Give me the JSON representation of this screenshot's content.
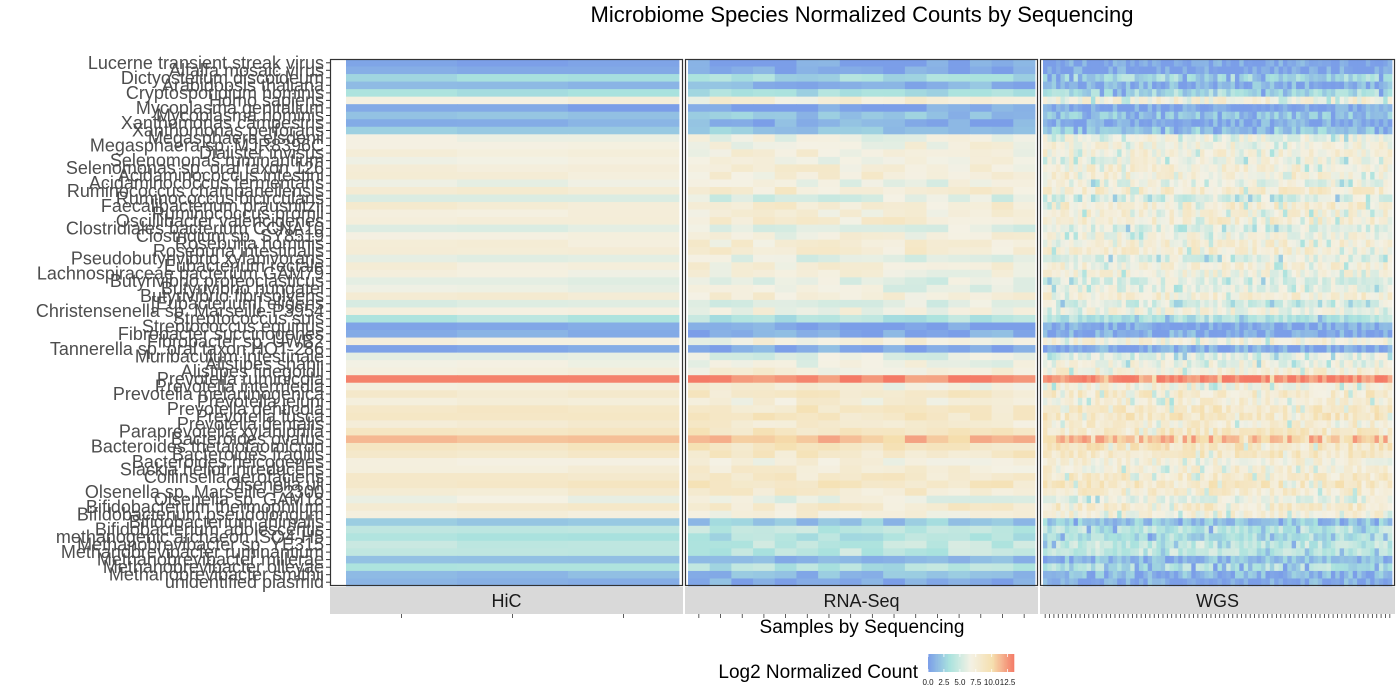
{
  "chart_data": {
    "type": "heatmap",
    "title": "Microbiome Species Normalized Counts by Sequencing",
    "xlabel": "Samples by Sequencing",
    "ylabel": "",
    "legend": {
      "title": "Log2 Normalized Count",
      "ticks": [
        "0.0",
        "2.5",
        "5.0",
        "7.5",
        "10.0",
        "12.5"
      ],
      "colorscale": [
        "#7b9ee8",
        "#a9e2de",
        "#f4f1e4",
        "#f5dfae",
        "#f47a66"
      ],
      "range": [
        0,
        13.5
      ],
      "placement": "bottom"
    },
    "panels": [
      {
        "name": "HiC",
        "samples": 3
      },
      {
        "name": "RNA-Seq",
        "samples": 16
      },
      {
        "name": "WGS",
        "samples": 80
      }
    ],
    "species": [
      "Lucerne transient streak virus",
      "Alfalfa mosaic virus",
      "Dictyostelium discoideum",
      "Arabidopsis thaliana",
      "Cryptosporidium hominis",
      "Homo sapiens",
      "Mycoplasma genitalium",
      "Mycoplasma hominis",
      "Xanthomonas campestris",
      "Xanthomonas perforans",
      "Megasphaera elsdenii",
      "Megasphaera sp. MJR8396C",
      "Dialister invisus",
      "Selenomonas ruminantium",
      "Selenomonas sp. oral taxon 126",
      "Acidaminococcus intestini",
      "Acidaminococcus fermentans",
      "Ruminococcus champanellensis",
      "Ruminococcus bicirculans",
      "Faecalibacterium prausnitzii",
      "Ruminococcus bromii",
      "Oscillibacter valericigenes",
      "Clostridiales bacterium CCNA10",
      "Clostridium sp. SY8519",
      "Roseburia hominis",
      "Roseburia intestinalis",
      "Pseudobutyrivibrio xylanivorans",
      "Eubacterium rectale",
      "Lachnospiraceae bacterium GAM79",
      "Butyrivibrio proteoclasticus",
      "Butyrivibrio hungatei",
      "Butyrivibrio fibrisolvens",
      "[Eubacterium] eligens",
      "Christensenella sp. Marseille-P3954",
      "Streptococcus suis",
      "Streptococcus equinus",
      "Fibrobacter succinogenes",
      "Fibrobacter sp. UWB2",
      "Tannerella sp. oral taxon HOT-286",
      "Muribaculum intestinale",
      "Alistipes shahii",
      "Alistipes finegoldii",
      "Prevotella ruminicola",
      "Prevotella intermedia",
      "Prevotella melaninogenica",
      "Prevotella jejuni",
      "Prevotella denticola",
      "Prevotella fusca",
      "Prevotella dentalis",
      "Paraprevotella xylaniphila",
      "Bacteroides ovatus",
      "Bacteroides thetaiotaomicron",
      "Bacteroides fragilis",
      "Bacteroides helcogenes",
      "Slackia heliotrinireducens",
      "Collinsella aerofaciens",
      "Olsenella uli",
      "Olsenella sp. Marseille-P2300",
      "Olsenella sp. GAM18",
      "Bifidobacterium thermophilum",
      "Bifidobacterium pseudolongum",
      "Bifidobacterium animalis",
      "Bifidobacterium adolescentis",
      "methanogenic archaeon ISO4-H5",
      "Methanobrevibacter sp. YE315",
      "Methanobrevibacter ruminantium",
      "Methanobrevibacter millerae",
      "Methanobrevibacter olleyae",
      "Methanobrevibacter smithii",
      "unidentified plasmid"
    ],
    "species_mean_log2": [
      0.2,
      0.4,
      3.0,
      1.2,
      3.3,
      7.2,
      0.3,
      1.8,
      0.8,
      2.2,
      6.6,
      7.0,
      7.2,
      6.7,
      7.4,
      7.5,
      6.4,
      7.9,
      5.7,
      7.8,
      7.3,
      7.7,
      5.8,
      6.9,
      7.5,
      7.6,
      6.0,
      7.3,
      6.9,
      5.9,
      6.3,
      7.6,
      5.7,
      6.9,
      3.9,
      0.5,
      0.8,
      7.0,
      0.6,
      5.8,
      6.6,
      7.4,
      13.1,
      7.1,
      8.2,
      7.4,
      8.6,
      8.8,
      7.8,
      8.7,
      11.2,
      8.9,
      8.5,
      7.2,
      7.5,
      8.3,
      8.6,
      7.9,
      6.4,
      8.1,
      7.3,
      2.1,
      4.2,
      3.6,
      4.6,
      4.4,
      1.6,
      3.7,
      1.3,
      0.8
    ]
  },
  "colors": {
    "low": "#7b9ee8",
    "mid_low": "#a9e2de",
    "mid": "#f4f1e4",
    "mid_high": "#f5dfae",
    "high": "#f47a66",
    "strip_background": "#d9d9d9",
    "panel_border": "#333333"
  }
}
